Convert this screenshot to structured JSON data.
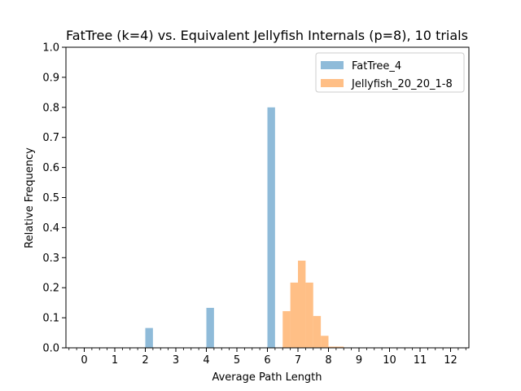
{
  "chart_data": {
    "type": "bar",
    "title": "FatTree (k=4) vs. Equivalent Jellyfish Internals (p=8), 10 trials",
    "xlabel": "Average Path Length",
    "ylabel": "Relative Frequency",
    "xlim": [
      -0.6,
      12.6
    ],
    "ylim": [
      0,
      1.0
    ],
    "xticks": [
      "0",
      "1",
      "2",
      "3",
      "4",
      "5",
      "6",
      "7",
      "8",
      "9",
      "10",
      "11",
      "12"
    ],
    "yticks": [
      "0.0",
      "0.1",
      "0.2",
      "0.3",
      "0.4",
      "0.5",
      "0.6",
      "0.7",
      "0.8",
      "0.9",
      "1.0"
    ],
    "bin_width": 0.25,
    "legend": "top-right",
    "grid": false,
    "series": [
      {
        "name": "FatTree_4",
        "color": "#1f77b4",
        "alpha": 0.5,
        "bins": [
          {
            "x": 2.0,
            "value": 0.066
          },
          {
            "x": 4.0,
            "value": 0.133
          },
          {
            "x": 6.0,
            "value": 0.8
          }
        ]
      },
      {
        "name": "Jellyfish_20_20_1-8",
        "color": "#ff7f0e",
        "alpha": 0.5,
        "bins": [
          {
            "x": 6.5,
            "value": 0.122
          },
          {
            "x": 6.75,
            "value": 0.217
          },
          {
            "x": 7.0,
            "value": 0.29
          },
          {
            "x": 7.25,
            "value": 0.217
          },
          {
            "x": 7.5,
            "value": 0.106
          },
          {
            "x": 7.75,
            "value": 0.04
          },
          {
            "x": 8.0,
            "value": 0.004
          },
          {
            "x": 8.25,
            "value": 0.004
          }
        ]
      }
    ]
  }
}
